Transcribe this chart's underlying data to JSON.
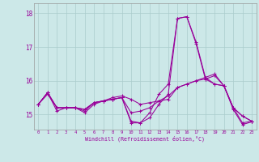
{
  "xlabel": "Windchill (Refroidissement éolien,°C)",
  "x": [
    0,
    1,
    2,
    3,
    4,
    5,
    6,
    7,
    8,
    9,
    10,
    11,
    12,
    13,
    14,
    15,
    16,
    17,
    18,
    19,
    20,
    21,
    22,
    23
  ],
  "line1": [
    15.3,
    15.65,
    15.2,
    15.2,
    15.2,
    15.15,
    15.35,
    15.4,
    15.45,
    15.5,
    14.8,
    14.75,
    15.05,
    15.6,
    15.9,
    17.85,
    17.9,
    17.15,
    16.1,
    16.2,
    15.85,
    15.2,
    14.75,
    14.8
  ],
  "line2": [
    15.3,
    15.65,
    15.2,
    15.2,
    15.2,
    15.15,
    15.35,
    15.4,
    15.45,
    15.5,
    15.05,
    15.1,
    15.2,
    15.4,
    15.55,
    15.8,
    15.9,
    16.0,
    16.05,
    15.9,
    15.85,
    15.2,
    14.95,
    14.8
  ],
  "line3": [
    15.3,
    15.6,
    15.2,
    15.2,
    15.2,
    15.1,
    15.35,
    15.4,
    15.5,
    15.55,
    15.45,
    15.3,
    15.35,
    15.4,
    15.45,
    15.8,
    15.9,
    16.0,
    16.1,
    15.9,
    15.85,
    15.2,
    14.95,
    14.8
  ],
  "line4": [
    15.3,
    15.65,
    15.1,
    15.2,
    15.2,
    15.05,
    15.3,
    15.4,
    15.45,
    15.5,
    14.75,
    14.75,
    14.9,
    15.3,
    15.6,
    17.85,
    17.9,
    17.1,
    16.05,
    16.15,
    15.85,
    15.15,
    14.7,
    14.78
  ],
  "color": "#990099",
  "bg_color": "#cce8e8",
  "grid_color": "#aacccc",
  "ylim_bottom": 14.55,
  "ylim_top": 18.3,
  "yticks": [
    15,
    16,
    17,
    18
  ],
  "xticks": [
    0,
    1,
    2,
    3,
    4,
    5,
    6,
    7,
    8,
    9,
    10,
    11,
    12,
    13,
    14,
    15,
    16,
    17,
    18,
    19,
    20,
    21,
    22,
    23
  ]
}
